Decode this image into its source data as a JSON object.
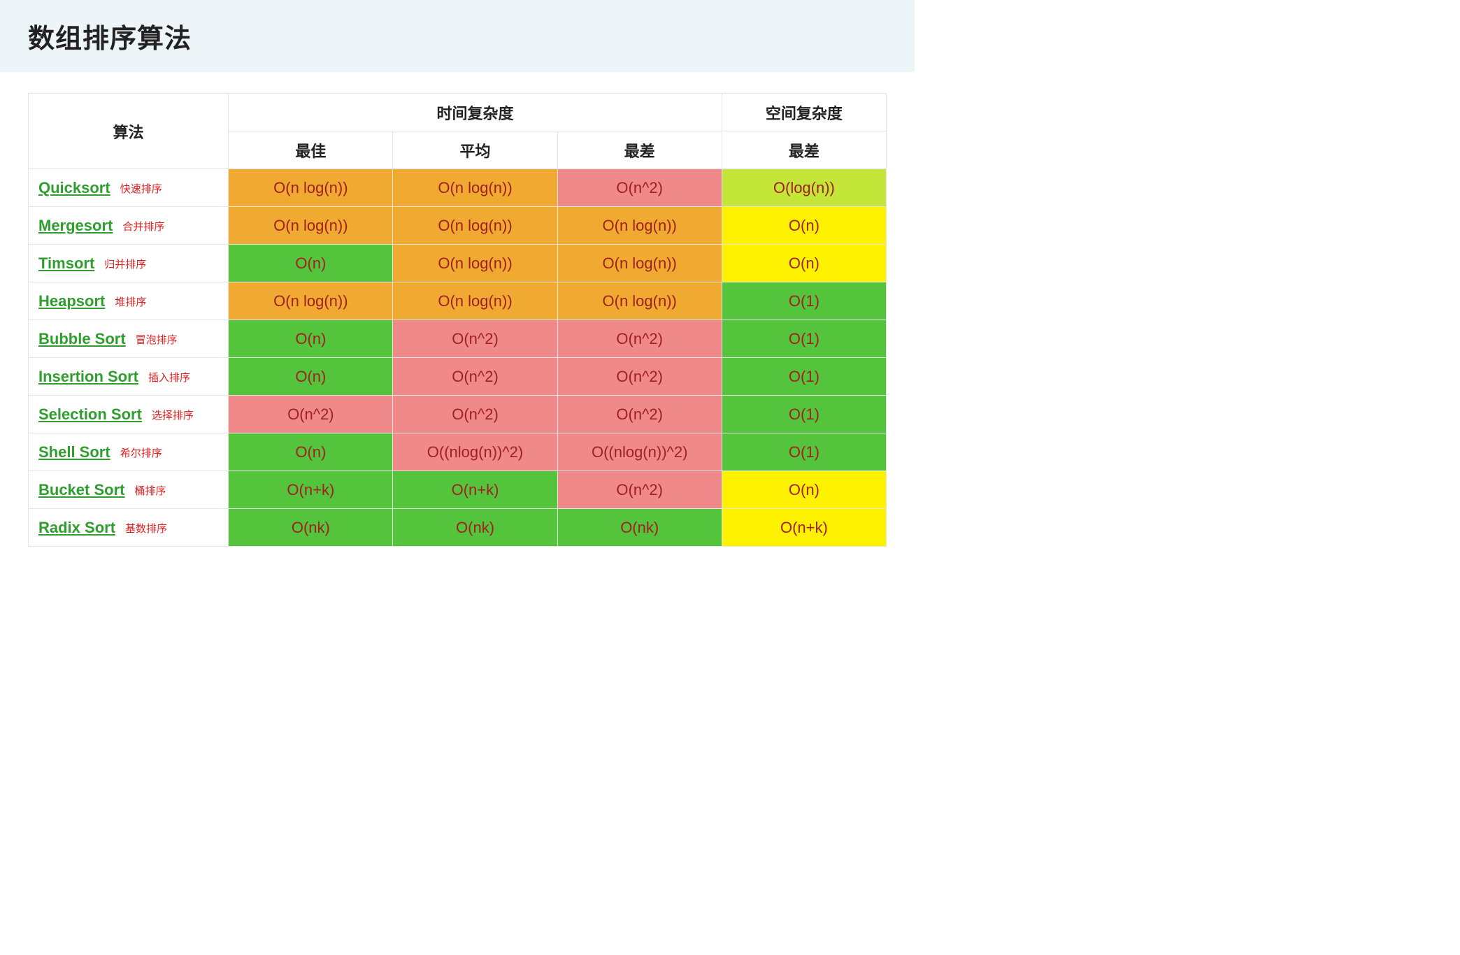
{
  "title": "数组排序算法",
  "palette": {
    "green": "#55c43d",
    "yellowgreen": "#c4e638",
    "yellow": "#fff200",
    "orange": "#f0aa32",
    "red": "#f08a8a",
    "cell_text": "#a02020",
    "link": "#2f9e2f",
    "note": "#e02020",
    "border": "#e4e4e4",
    "header_bg": "#edf5f9"
  },
  "columns": {
    "algo": "算法",
    "time": "时间复杂度",
    "space": "空间复杂度",
    "best": "最佳",
    "avg": "平均",
    "worst": "最差"
  },
  "rows": [
    {
      "name": "Quicksort",
      "note": "快速排序",
      "best": {
        "v": "O(n log(n))",
        "c": "orange"
      },
      "avg": {
        "v": "O(n log(n))",
        "c": "orange"
      },
      "worst": {
        "v": "O(n^2)",
        "c": "red"
      },
      "space": {
        "v": "O(log(n))",
        "c": "yellowgreen"
      }
    },
    {
      "name": "Mergesort",
      "note": "合并排序",
      "best": {
        "v": "O(n log(n))",
        "c": "orange"
      },
      "avg": {
        "v": "O(n log(n))",
        "c": "orange"
      },
      "worst": {
        "v": "O(n log(n))",
        "c": "orange"
      },
      "space": {
        "v": "O(n)",
        "c": "yellow"
      }
    },
    {
      "name": "Timsort",
      "note": "归并排序",
      "best": {
        "v": "O(n)",
        "c": "green"
      },
      "avg": {
        "v": "O(n log(n))",
        "c": "orange"
      },
      "worst": {
        "v": "O(n log(n))",
        "c": "orange"
      },
      "space": {
        "v": "O(n)",
        "c": "yellow"
      }
    },
    {
      "name": "Heapsort",
      "note": "堆排序",
      "best": {
        "v": "O(n log(n))",
        "c": "orange"
      },
      "avg": {
        "v": "O(n log(n))",
        "c": "orange"
      },
      "worst": {
        "v": "O(n log(n))",
        "c": "orange"
      },
      "space": {
        "v": "O(1)",
        "c": "green"
      }
    },
    {
      "name": "Bubble Sort",
      "note": "冒泡排序",
      "best": {
        "v": "O(n)",
        "c": "green"
      },
      "avg": {
        "v": "O(n^2)",
        "c": "red"
      },
      "worst": {
        "v": "O(n^2)",
        "c": "red"
      },
      "space": {
        "v": "O(1)",
        "c": "green"
      }
    },
    {
      "name": "Insertion Sort",
      "note": "插入排序",
      "best": {
        "v": "O(n)",
        "c": "green"
      },
      "avg": {
        "v": "O(n^2)",
        "c": "red"
      },
      "worst": {
        "v": "O(n^2)",
        "c": "red"
      },
      "space": {
        "v": "O(1)",
        "c": "green"
      }
    },
    {
      "name": "Selection Sort",
      "note": "选择排序",
      "best": {
        "v": "O(n^2)",
        "c": "red"
      },
      "avg": {
        "v": "O(n^2)",
        "c": "red"
      },
      "worst": {
        "v": "O(n^2)",
        "c": "red"
      },
      "space": {
        "v": "O(1)",
        "c": "green"
      }
    },
    {
      "name": "Shell Sort",
      "note": "希尔排序",
      "best": {
        "v": "O(n)",
        "c": "green"
      },
      "avg": {
        "v": "O((nlog(n))^2)",
        "c": "red"
      },
      "worst": {
        "v": "O((nlog(n))^2)",
        "c": "red"
      },
      "space": {
        "v": "O(1)",
        "c": "green"
      }
    },
    {
      "name": "Bucket Sort",
      "note": "桶排序",
      "best": {
        "v": "O(n+k)",
        "c": "green"
      },
      "avg": {
        "v": "O(n+k)",
        "c": "green"
      },
      "worst": {
        "v": "O(n^2)",
        "c": "red"
      },
      "space": {
        "v": "O(n)",
        "c": "yellow"
      }
    },
    {
      "name": "Radix Sort",
      "note": "基数排序",
      "best": {
        "v": "O(nk)",
        "c": "green"
      },
      "avg": {
        "v": "O(nk)",
        "c": "green"
      },
      "worst": {
        "v": "O(nk)",
        "c": "green"
      },
      "space": {
        "v": "O(n+k)",
        "c": "yellow"
      }
    }
  ]
}
